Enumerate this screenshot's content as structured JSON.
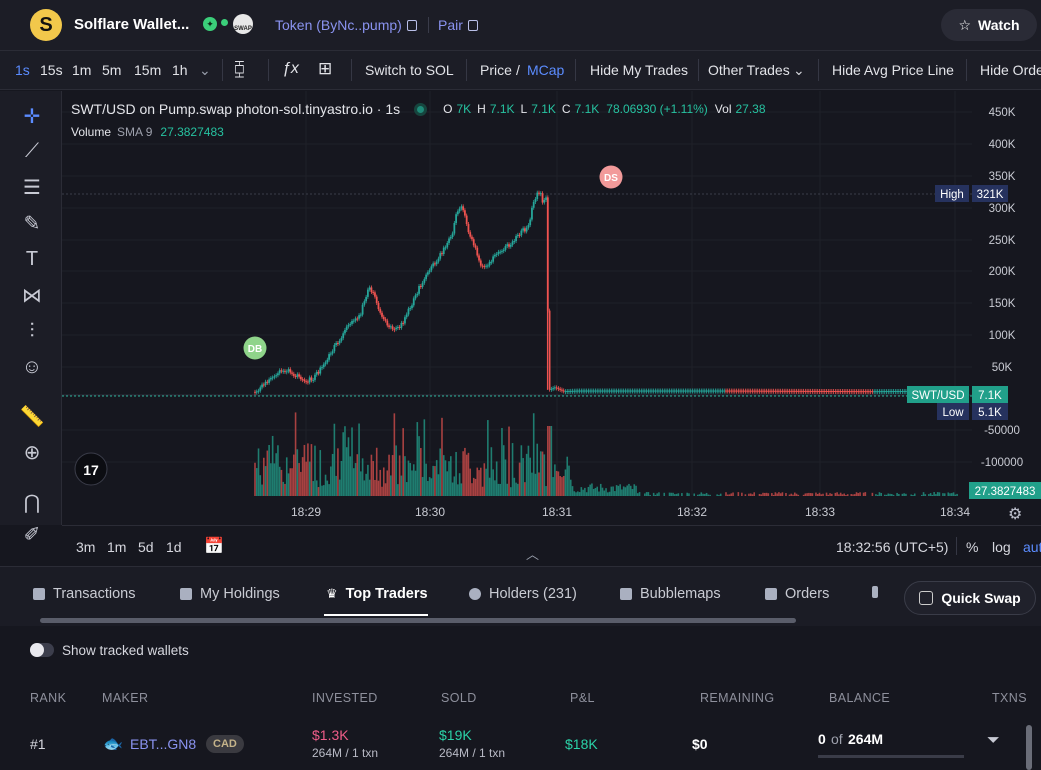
{
  "header": {
    "logo_letter": "S",
    "token_name": "Solflare Wallet...",
    "swap_badge": "SWAP",
    "token_link": "Token (ByNc..pump)",
    "pair_link": "Pair",
    "watch_label": "Watch"
  },
  "toolbar": {
    "intervals": [
      "1s",
      "15s",
      "1m",
      "5m",
      "15m",
      "1h"
    ],
    "switch_label": "Switch to SOL",
    "price_label": "Price",
    "price_sep": "/",
    "mcap_label": "MCap",
    "hide_my_trades": "Hide My Trades",
    "other_trades": "Other Trades",
    "hide_avg": "Hide Avg Price Line",
    "hide_orders": "Hide Orde"
  },
  "chart_header": {
    "symbol": "SWT/USD on Pump.swap photon-sol.tinyastro.io · 1s",
    "o_lbl": "O",
    "o_val": "7K",
    "h_lbl": "H",
    "h_val": "7.1K",
    "l_lbl": "L",
    "l_val": "7.1K",
    "c_lbl": "C",
    "c_val": "7.1K",
    "change": "78.06930 (+1.11%)",
    "vol_lbl": "Vol",
    "vol_val": "27.38",
    "volume_lbl": "Volume",
    "sma_lbl": "SMA 9",
    "sma_val": "27.3827483"
  },
  "chart_data": {
    "type": "candlestick",
    "y_ticks": [
      "450K",
      "400K",
      "350K",
      "300K",
      "250K",
      "200K",
      "150K",
      "100K",
      "50K",
      "-50000",
      "-100000"
    ],
    "x_ticks": [
      "18:29",
      "18:30",
      "18:31",
      "18:32",
      "18:33",
      "18:34"
    ],
    "tags": {
      "high_label": "High",
      "high_value": "321K",
      "pair_label": "SWT/USD",
      "pair_value": "7.1K",
      "low_label": "Low",
      "low_value": "5.1K",
      "volume_value": "27.3827483"
    },
    "markers": [
      {
        "label": "DB",
        "color": "#8fd48a"
      },
      {
        "label": "DS",
        "color": "#f29a9a"
      }
    ],
    "price_path": [
      [
        0,
        5
      ],
      [
        8,
        22
      ],
      [
        15,
        35
      ],
      [
        22,
        38
      ],
      [
        28,
        30
      ],
      [
        35,
        22
      ],
      [
        40,
        28
      ],
      [
        46,
        45
      ],
      [
        52,
        70
      ],
      [
        58,
        90
      ],
      [
        63,
        110
      ],
      [
        68,
        115
      ],
      [
        72,
        130
      ],
      [
        78,
        170
      ],
      [
        82,
        150
      ],
      [
        88,
        115
      ],
      [
        94,
        105
      ],
      [
        100,
        110
      ],
      [
        106,
        140
      ],
      [
        112,
        170
      ],
      [
        118,
        195
      ],
      [
        124,
        215
      ],
      [
        130,
        235
      ],
      [
        134,
        250
      ],
      [
        136,
        280
      ],
      [
        140,
        300
      ],
      [
        142,
        290
      ],
      [
        146,
        250
      ],
      [
        150,
        230
      ],
      [
        154,
        205
      ],
      [
        158,
        200
      ],
      [
        162,
        215
      ],
      [
        166,
        225
      ],
      [
        172,
        235
      ],
      [
        176,
        245
      ],
      [
        180,
        255
      ],
      [
        186,
        265
      ],
      [
        190,
        310
      ],
      [
        194,
        321
      ],
      [
        196,
        300
      ],
      [
        198,
        310
      ],
      [
        200,
        8
      ],
      [
        204,
        12
      ],
      [
        210,
        6
      ],
      [
        220,
        7
      ],
      [
        260,
        7
      ],
      [
        320,
        7
      ],
      [
        420,
        6
      ],
      [
        480,
        7
      ]
    ]
  },
  "bottom_bar": {
    "ranges": [
      "3m",
      "1m",
      "5d",
      "1d"
    ],
    "time": "18:32:56 (UTC+5)",
    "pct": "%",
    "log": "log",
    "auto": "aut"
  },
  "tabs": [
    {
      "label": "Transactions"
    },
    {
      "label": "My Holdings"
    },
    {
      "label": "Top Traders"
    },
    {
      "label": "Holders (231)"
    },
    {
      "label": "Bubblemaps"
    },
    {
      "label": "Orders"
    }
  ],
  "quick_swap": "Quick Swap",
  "show_tracked": "Show tracked wallets",
  "table": {
    "headers": [
      "RANK",
      "MAKER",
      "INVESTED",
      "SOLD",
      "P&L",
      "REMAINING",
      "BALANCE",
      "TXNS"
    ],
    "rows": [
      {
        "rank": "#1",
        "maker": "EBT...GN8",
        "tag": "CAD",
        "invested": "$1.3K",
        "invested_sub": "264M / 1 txn",
        "sold": "$19K",
        "sold_sub": "264M / 1 txn",
        "pnl": "$18K",
        "remaining": "$0",
        "balance_have": "0",
        "balance_of": "of",
        "balance_total": "264M"
      }
    ]
  }
}
